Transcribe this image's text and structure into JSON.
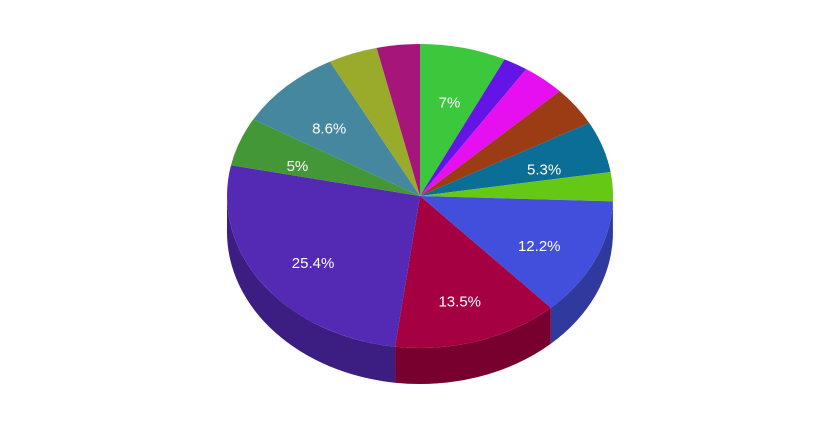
{
  "chart_data": {
    "type": "pie",
    "style": "3d-tilted",
    "slices": [
      {
        "value": 7.0,
        "label": "7%",
        "color": "#3cc83c"
      },
      {
        "value": 2.0,
        "label": "",
        "color": "#6414e6"
      },
      {
        "value": 3.5,
        "label": "",
        "color": "#e60ff0"
      },
      {
        "value": 4.0,
        "label": "",
        "color": "#9b3c14"
      },
      {
        "value": 5.3,
        "label": "5.3%",
        "color": "#0a6e96"
      },
      {
        "value": 3.0,
        "label": "",
        "color": "#64c814"
      },
      {
        "value": 12.2,
        "label": "12.2%",
        "color": "#414fdc"
      },
      {
        "value": 13.5,
        "label": "13.5%",
        "color": "#a50041"
      },
      {
        "value": 25.4,
        "label": "25.4%",
        "color": "#542ab5"
      },
      {
        "value": 5.0,
        "label": "5%",
        "color": "#439736"
      },
      {
        "value": 8.6,
        "label": "8.6%",
        "color": "#44879f"
      },
      {
        "value": 4.0,
        "label": "",
        "color": "#9aab2c"
      },
      {
        "value": 3.5,
        "label": "",
        "color": "#a6167a"
      }
    ]
  }
}
